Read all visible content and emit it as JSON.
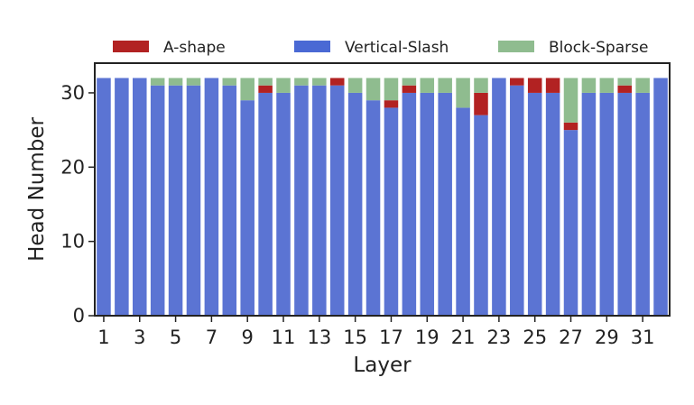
{
  "chart_data": {
    "type": "bar",
    "stacked": true,
    "xlabel": "Layer",
    "ylabel": "Head Number",
    "ylim": [
      0,
      34
    ],
    "yticks": [
      0,
      10,
      20,
      30
    ],
    "xticks": [
      1,
      3,
      5,
      7,
      9,
      11,
      13,
      15,
      17,
      19,
      21,
      23,
      25,
      27,
      29,
      31
    ],
    "legend_position": "top",
    "categories": [
      1,
      2,
      3,
      4,
      5,
      6,
      7,
      8,
      9,
      10,
      11,
      12,
      13,
      14,
      15,
      16,
      17,
      18,
      19,
      20,
      21,
      22,
      23,
      24,
      25,
      26,
      27,
      28,
      29,
      30,
      31,
      32
    ],
    "series": [
      {
        "name": "Vertical-Slash",
        "color": "#5b74d3",
        "values": [
          32,
          32,
          32,
          31,
          31,
          31,
          32,
          31,
          29,
          30,
          30,
          31,
          31,
          31,
          30,
          29,
          28,
          30,
          30,
          30,
          28,
          27,
          32,
          31,
          30,
          30,
          25,
          30,
          30,
          30,
          30,
          32
        ]
      },
      {
        "name": "A-shape",
        "color": "#b22222",
        "values": [
          0,
          0,
          0,
          0,
          0,
          0,
          0,
          0,
          0,
          1,
          0,
          0,
          0,
          1,
          0,
          0,
          1,
          1,
          0,
          0,
          0,
          3,
          0,
          1,
          2,
          2,
          1,
          0,
          0,
          1,
          0,
          0
        ]
      },
      {
        "name": "Block-Sparse",
        "color": "#8fbc8f",
        "values": [
          0,
          0,
          0,
          1,
          1,
          1,
          0,
          1,
          3,
          1,
          2,
          1,
          1,
          0,
          2,
          3,
          3,
          1,
          2,
          2,
          4,
          2,
          0,
          0,
          0,
          0,
          6,
          2,
          2,
          1,
          2,
          0
        ]
      }
    ],
    "legend": [
      {
        "name": "A-shape",
        "color": "#b22222"
      },
      {
        "name": "Vertical-Slash",
        "color": "#4a69d4"
      },
      {
        "name": "Block-Sparse",
        "color": "#8fbc8f"
      }
    ]
  }
}
